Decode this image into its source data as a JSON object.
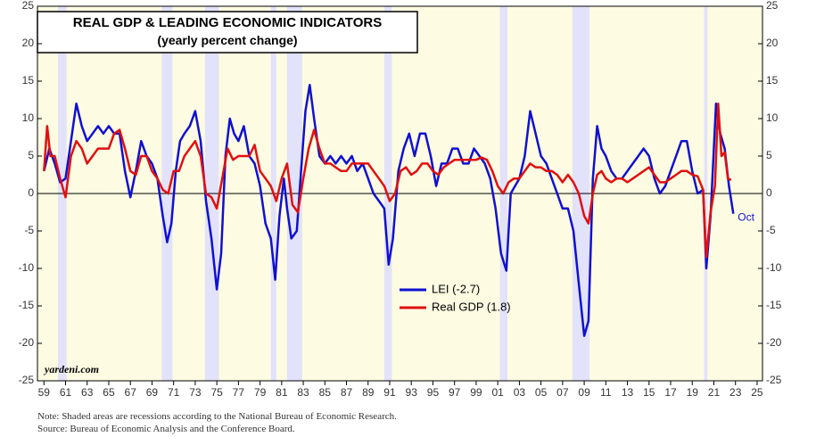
{
  "chart_data": {
    "type": "line",
    "title": "REAL GDP & LEADING ECONOMIC INDICATORS",
    "subtitle": "(yearly percent change)",
    "source_mark": "yardeni.com",
    "annotation": "Oct",
    "notes": [
      "Note: Shaded areas are recessions according to the National Bureau of Economic Research.",
      "Source: Bureau of Economic Analysis and the Conference Board."
    ],
    "xlim": [
      1958.4,
      2025.5
    ],
    "ylim": [
      -25,
      25
    ],
    "yticks": [
      -25,
      -20,
      -15,
      -10,
      -5,
      0,
      5,
      10,
      15,
      20,
      25
    ],
    "xticks": [
      {
        "value": 1959,
        "label": "59"
      },
      {
        "value": 1961,
        "label": "61"
      },
      {
        "value": 1963,
        "label": "63"
      },
      {
        "value": 1965,
        "label": "65"
      },
      {
        "value": 1967,
        "label": "67"
      },
      {
        "value": 1969,
        "label": "69"
      },
      {
        "value": 1971,
        "label": "71"
      },
      {
        "value": 1973,
        "label": "73"
      },
      {
        "value": 1975,
        "label": "75"
      },
      {
        "value": 1977,
        "label": "77"
      },
      {
        "value": 1979,
        "label": "79"
      },
      {
        "value": 1981,
        "label": "81"
      },
      {
        "value": 1983,
        "label": "83"
      },
      {
        "value": 1985,
        "label": "85"
      },
      {
        "value": 1987,
        "label": "87"
      },
      {
        "value": 1989,
        "label": "89"
      },
      {
        "value": 1991,
        "label": "91"
      },
      {
        "value": 1993,
        "label": "93"
      },
      {
        "value": 1995,
        "label": "95"
      },
      {
        "value": 1997,
        "label": "97"
      },
      {
        "value": 1999,
        "label": "99"
      },
      {
        "value": 2001,
        "label": "01"
      },
      {
        "value": 2003,
        "label": "03"
      },
      {
        "value": 2005,
        "label": "05"
      },
      {
        "value": 2007,
        "label": "07"
      },
      {
        "value": 2009,
        "label": "09"
      },
      {
        "value": 2011,
        "label": "11"
      },
      {
        "value": 2013,
        "label": "13"
      },
      {
        "value": 2015,
        "label": "15"
      },
      {
        "value": 2017,
        "label": "17"
      },
      {
        "value": 2019,
        "label": "19"
      },
      {
        "value": 2021,
        "label": "21"
      },
      {
        "value": 2023,
        "label": "23"
      },
      {
        "value": 2025,
        "label": "25"
      }
    ],
    "recessions": [
      [
        1960.3,
        1961.1
      ],
      [
        1969.9,
        1970.9
      ],
      [
        1973.9,
        1975.2
      ],
      [
        1980.0,
        1980.5
      ],
      [
        1981.5,
        1982.9
      ],
      [
        1990.5,
        1991.2
      ],
      [
        2001.2,
        2001.9
      ],
      [
        2007.9,
        2009.5
      ],
      [
        2020.1,
        2020.4
      ]
    ],
    "recession_color": "#e2e2fb",
    "background": "#fdfbe2",
    "legend": "lower-center",
    "series": [
      {
        "name": "LEI (-2.7)",
        "color": "#1010d0",
        "x": [
          1959.0,
          1959.5,
          1960.0,
          1960.5,
          1961.0,
          1961.5,
          1962.0,
          1962.5,
          1963.0,
          1963.5,
          1964.0,
          1964.5,
          1965.0,
          1965.5,
          1966.0,
          1966.5,
          1967.0,
          1967.5,
          1968.0,
          1968.5,
          1969.0,
          1969.5,
          1970.0,
          1970.4,
          1970.8,
          1971.2,
          1971.6,
          1972.0,
          1972.5,
          1973.0,
          1973.5,
          1974.0,
          1974.5,
          1975.0,
          1975.4,
          1975.8,
          1976.2,
          1976.6,
          1977.0,
          1977.5,
          1978.0,
          1978.5,
          1979.0,
          1979.5,
          1980.0,
          1980.4,
          1980.8,
          1981.2,
          1981.5,
          1981.9,
          1982.4,
          1982.8,
          1983.2,
          1983.6,
          1984.0,
          1984.5,
          1985.0,
          1985.5,
          1986.0,
          1986.5,
          1987.0,
          1987.5,
          1988.0,
          1988.5,
          1989.0,
          1989.5,
          1990.0,
          1990.5,
          1990.9,
          1991.3,
          1991.8,
          1992.3,
          1992.8,
          1993.3,
          1993.8,
          1994.3,
          1994.8,
          1995.3,
          1995.8,
          1996.3,
          1996.8,
          1997.3,
          1997.8,
          1998.3,
          1998.8,
          1999.3,
          1999.8,
          2000.3,
          2000.8,
          2001.3,
          2001.8,
          2002.2,
          2002.6,
          2003.0,
          2003.5,
          2004.0,
          2004.5,
          2005.0,
          2005.5,
          2006.0,
          2006.5,
          2007.0,
          2007.5,
          2008.0,
          2008.5,
          2009.0,
          2009.4,
          2009.8,
          2010.2,
          2010.6,
          2011.0,
          2011.5,
          2012.0,
          2012.5,
          2013.0,
          2013.5,
          2014.0,
          2014.5,
          2015.0,
          2015.5,
          2016.0,
          2016.5,
          2017.0,
          2017.5,
          2018.0,
          2018.5,
          2019.0,
          2019.5,
          2020.0,
          2020.3,
          2020.7,
          2021.2,
          2021.6,
          2022.0,
          2022.4,
          2022.8
        ],
        "values": [
          3,
          6,
          4,
          1.5,
          2,
          7,
          12,
          9,
          7,
          8,
          9,
          8,
          9,
          8,
          8,
          3,
          -0.5,
          3,
          7,
          5,
          4,
          2,
          -3,
          -6.5,
          -4,
          3,
          7,
          8,
          9,
          11,
          7,
          -1,
          -6,
          -12.8,
          -8,
          5,
          10,
          8,
          7,
          9,
          5,
          4,
          1,
          -4,
          -6,
          -11.5,
          -3,
          2,
          -2,
          -6,
          -5,
          3,
          11,
          14.5,
          10,
          5,
          4,
          5,
          4,
          5,
          4,
          5,
          3,
          4,
          2,
          0,
          -1,
          -2,
          -9.5,
          -6,
          3,
          6,
          8,
          5,
          8,
          8,
          5,
          1,
          4,
          4,
          6,
          6,
          4,
          4,
          6,
          5,
          4,
          2,
          -2,
          -8,
          -10.3,
          0,
          1,
          2,
          5,
          11,
          8,
          5,
          4,
          2,
          0,
          -2,
          -2,
          -5,
          -12,
          -19,
          -17,
          2,
          9,
          6,
          5,
          3,
          2,
          2,
          3,
          4,
          5,
          6,
          5,
          2,
          0,
          1,
          3,
          5,
          7,
          7,
          3,
          0,
          0.5,
          -10,
          -3,
          12,
          8,
          6,
          1,
          -2.7
        ]
      },
      {
        "name": "Real GDP (1.8)",
        "color": "#e01010",
        "x": [
          1959.0,
          1959.3,
          1959.6,
          1960.0,
          1960.5,
          1961.0,
          1961.5,
          1962.0,
          1962.5,
          1963.0,
          1963.5,
          1964.0,
          1964.5,
          1965.0,
          1965.5,
          1966.0,
          1966.5,
          1967.0,
          1967.5,
          1968.0,
          1968.5,
          1969.0,
          1969.5,
          1970.0,
          1970.5,
          1971.0,
          1971.5,
          1972.0,
          1972.5,
          1973.0,
          1973.5,
          1974.0,
          1974.5,
          1975.0,
          1975.5,
          1976.0,
          1976.5,
          1977.0,
          1977.5,
          1978.0,
          1978.5,
          1979.0,
          1979.5,
          1980.0,
          1980.5,
          1981.0,
          1981.5,
          1982.0,
          1982.5,
          1983.0,
          1983.5,
          1984.0,
          1984.5,
          1985.0,
          1985.5,
          1986.0,
          1986.5,
          1987.0,
          1987.5,
          1988.0,
          1988.5,
          1989.0,
          1989.5,
          1990.0,
          1990.5,
          1991.0,
          1991.5,
          1992.0,
          1992.5,
          1993.0,
          1993.5,
          1994.0,
          1994.5,
          1995.0,
          1995.5,
          1996.0,
          1996.5,
          1997.0,
          1997.5,
          1998.0,
          1998.5,
          1999.0,
          1999.5,
          2000.0,
          2000.5,
          2001.0,
          2001.5,
          2002.0,
          2002.5,
          2003.0,
          2003.5,
          2004.0,
          2004.5,
          2005.0,
          2005.5,
          2006.0,
          2006.5,
          2007.0,
          2007.5,
          2008.0,
          2008.5,
          2009.0,
          2009.4,
          2009.8,
          2010.2,
          2010.6,
          2011.0,
          2011.5,
          2012.0,
          2012.5,
          2013.0,
          2013.5,
          2014.0,
          2014.5,
          2015.0,
          2015.5,
          2016.0,
          2016.5,
          2017.0,
          2017.5,
          2018.0,
          2018.5,
          2019.0,
          2019.5,
          2020.0,
          2020.3,
          2020.7,
          2021.1,
          2021.4,
          2021.7,
          2022.0,
          2022.3,
          2022.6
        ],
        "values": [
          3,
          9,
          5,
          5,
          2,
          -0.5,
          5,
          7,
          6,
          4,
          5,
          6,
          6,
          6,
          8,
          8.5,
          6,
          3,
          2.5,
          5,
          5,
          3,
          2,
          0.5,
          0,
          3,
          3,
          5,
          6,
          7,
          5,
          0,
          -0.5,
          -2,
          2,
          6,
          4.5,
          5,
          5,
          5,
          6.5,
          3,
          2,
          1,
          -1,
          2,
          4,
          -1.5,
          -2.5,
          2,
          6,
          8.5,
          6,
          4,
          4,
          3.5,
          3,
          3,
          4,
          4,
          4,
          4,
          3,
          2,
          1,
          -1,
          0,
          3,
          3.5,
          2.5,
          3,
          4,
          4,
          3,
          2.5,
          3.5,
          4,
          4.5,
          4.5,
          4.5,
          4.5,
          4.5,
          4.8,
          4.5,
          3,
          1,
          0,
          1.5,
          2,
          2,
          3,
          4,
          3.5,
          3.5,
          3,
          3,
          2.5,
          1.5,
          2.5,
          1.5,
          0,
          -3,
          -4,
          0,
          2.5,
          3,
          2,
          1.5,
          2,
          2,
          1.5,
          2,
          2.5,
          3,
          3.5,
          2.5,
          1.5,
          1.5,
          2,
          2.5,
          3,
          3,
          2.5,
          2.3,
          0.5,
          -8.5,
          -2.5,
          1,
          12,
          5,
          5.5,
          2,
          1.8
        ]
      }
    ]
  }
}
